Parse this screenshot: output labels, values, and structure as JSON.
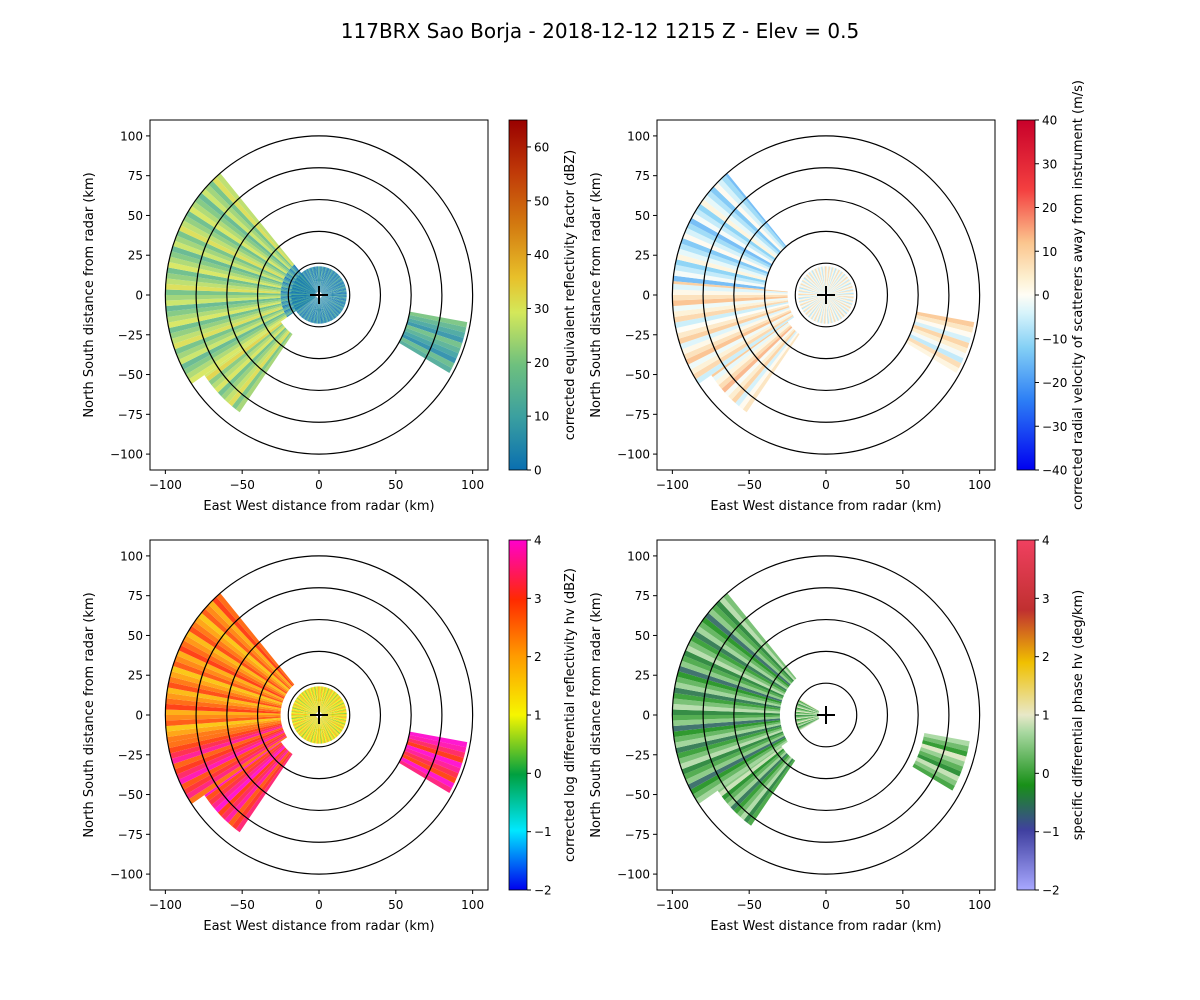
{
  "figure": {
    "title": "117BRX Sao Borja - 2018-12-12 1215 Z -  Elev = 0.5"
  },
  "chart_data": [
    {
      "type": "heatmap",
      "subtype": "radar-ppi",
      "field": "corrected_reflectivity",
      "xlabel": "East West distance from radar (km)",
      "ylabel": "North South distance from radar (km)",
      "xlim": [
        -110,
        110
      ],
      "ylim": [
        -110,
        110
      ],
      "xticks": [
        -100,
        -50,
        0,
        50,
        100
      ],
      "yticks": [
        -100,
        -75,
        -50,
        -25,
        0,
        25,
        50,
        75,
        100
      ],
      "range_rings_km": [
        20,
        40,
        60,
        80,
        100
      ],
      "colorbar": {
        "label": "corrected equivalent reflectivity factor (dBZ)",
        "vmin": 0,
        "vmax": 65,
        "ticks": [
          0,
          10,
          20,
          30,
          40,
          50,
          60
        ],
        "stops": [
          [
            0,
            "#0a6fb0"
          ],
          [
            0.15,
            "#3a9fa0"
          ],
          [
            0.3,
            "#6ec07e"
          ],
          [
            0.45,
            "#d4e85a"
          ],
          [
            0.55,
            "#e8c02a"
          ],
          [
            0.7,
            "#d37a10"
          ],
          [
            0.85,
            "#c03a08"
          ],
          [
            1,
            "#990000"
          ]
        ]
      },
      "echo_sectors": [
        {
          "az_from": 236,
          "az_to": 320,
          "r_from": 25,
          "r_to": 100,
          "value": 24
        },
        {
          "az_from": 215,
          "az_to": 236,
          "r_from": 30,
          "r_to": 90,
          "value": 26
        },
        {
          "az_from": 236,
          "az_to": 320,
          "r_from": 3,
          "r_to": 25,
          "value": 8
        },
        {
          "az_from": 100,
          "az_to": 120,
          "r_from": 60,
          "r_to": 98,
          "value": 13
        },
        {
          "az_from": 0,
          "az_to": 360,
          "r_from": 2,
          "r_to": 18,
          "value": 5
        }
      ]
    },
    {
      "type": "heatmap",
      "subtype": "radar-ppi",
      "field": "corrected_velocity",
      "xlabel": "East West distance from radar (km)",
      "ylabel": "North South distance from radar (km)",
      "xlim": [
        -110,
        110
      ],
      "ylim": [
        -110,
        110
      ],
      "xticks": [
        -100,
        -50,
        0,
        50,
        100
      ],
      "yticks": [
        -100,
        -75,
        -50,
        -25,
        0,
        25,
        50,
        75,
        100
      ],
      "range_rings_km": [
        20,
        40,
        60,
        80,
        100
      ],
      "colorbar": {
        "label": "corrected radial velocity of scatterers away from instrument (m/s)",
        "vmin": -40,
        "vmax": 40,
        "ticks": [
          -40,
          -30,
          -20,
          -10,
          0,
          10,
          20,
          30,
          40
        ],
        "stops": [
          [
            0,
            "#0000f0"
          ],
          [
            0.2,
            "#2d7ff5"
          ],
          [
            0.35,
            "#84d0f5"
          ],
          [
            0.45,
            "#d8f4fb"
          ],
          [
            0.5,
            "#fffdf5"
          ],
          [
            0.55,
            "#fdefcf"
          ],
          [
            0.65,
            "#fbc58e"
          ],
          [
            0.8,
            "#f44040"
          ],
          [
            1,
            "#c8002a"
          ]
        ]
      },
      "echo_sectors": [
        {
          "az_from": 275,
          "az_to": 320,
          "r_from": 40,
          "r_to": 100,
          "value": -6
        },
        {
          "az_from": 236,
          "az_to": 275,
          "r_from": 25,
          "r_to": 100,
          "value": 4
        },
        {
          "az_from": 215,
          "az_to": 236,
          "r_from": 30,
          "r_to": 90,
          "value": 5
        },
        {
          "az_from": 100,
          "az_to": 120,
          "r_from": 60,
          "r_to": 98,
          "value": 3
        },
        {
          "az_from": 0,
          "az_to": 360,
          "r_from": 2,
          "r_to": 18,
          "value": 1
        }
      ]
    },
    {
      "type": "heatmap",
      "subtype": "radar-ppi",
      "field": "corrected_differential_reflectivity",
      "xlabel": "East West distance from radar (km)",
      "ylabel": "North South distance from radar (km)",
      "xlim": [
        -110,
        110
      ],
      "ylim": [
        -110,
        110
      ],
      "xticks": [
        -100,
        -50,
        0,
        50,
        100
      ],
      "yticks": [
        -100,
        -75,
        -50,
        -25,
        0,
        25,
        50,
        75,
        100
      ],
      "range_rings_km": [
        20,
        40,
        60,
        80,
        100
      ],
      "colorbar": {
        "label": "corrected log differential reflectivity hv (dBZ)",
        "vmin": -2,
        "vmax": 4,
        "ticks": [
          -2,
          -1,
          0,
          1,
          2,
          3,
          4
        ],
        "stops": [
          [
            0,
            "#0000ee"
          ],
          [
            0.17,
            "#00e8ff"
          ],
          [
            0.33,
            "#00a040"
          ],
          [
            0.5,
            "#f6f600"
          ],
          [
            0.67,
            "#ff9a00"
          ],
          [
            0.83,
            "#ff2a00"
          ],
          [
            1,
            "#ff00cc"
          ]
        ]
      },
      "echo_sectors": [
        {
          "az_from": 260,
          "az_to": 320,
          "r_from": 25,
          "r_to": 100,
          "value": 2.3
        },
        {
          "az_from": 236,
          "az_to": 260,
          "r_from": 25,
          "r_to": 100,
          "value": 3.2
        },
        {
          "az_from": 215,
          "az_to": 236,
          "r_from": 30,
          "r_to": 90,
          "value": 3.4
        },
        {
          "az_from": 100,
          "az_to": 120,
          "r_from": 60,
          "r_to": 98,
          "value": 3.6
        },
        {
          "az_from": 0,
          "az_to": 360,
          "r_from": 2,
          "r_to": 18,
          "value": 1.2
        }
      ]
    },
    {
      "type": "heatmap",
      "subtype": "radar-ppi",
      "field": "specific_differential_phase",
      "xlabel": "East West distance from radar (km)",
      "ylabel": "North South distance from radar (km)",
      "xlim": [
        -110,
        110
      ],
      "ylim": [
        -110,
        110
      ],
      "xticks": [
        -100,
        -50,
        0,
        50,
        100
      ],
      "yticks": [
        -100,
        -75,
        -50,
        -25,
        0,
        25,
        50,
        75,
        100
      ],
      "range_rings_km": [
        20,
        40,
        60,
        80,
        100
      ],
      "colorbar": {
        "label": "specific differential phase hv (deg/km)",
        "vmin": -2,
        "vmax": 4,
        "ticks": [
          -2,
          -1,
          0,
          1,
          2,
          3,
          4
        ],
        "stops": [
          [
            0,
            "#a8a8ff"
          ],
          [
            0.17,
            "#4040a0"
          ],
          [
            0.3,
            "#189018"
          ],
          [
            0.45,
            "#a8d8a0"
          ],
          [
            0.5,
            "#e8e8c8"
          ],
          [
            0.65,
            "#f0c000"
          ],
          [
            0.8,
            "#c03030"
          ],
          [
            1,
            "#f04060"
          ]
        ]
      },
      "echo_sectors": [
        {
          "az_from": 236,
          "az_to": 320,
          "r_from": 30,
          "r_to": 100,
          "value": 0.1
        },
        {
          "az_from": 215,
          "az_to": 236,
          "r_from": 35,
          "r_to": 85,
          "value": 0.2
        },
        {
          "az_from": 100,
          "az_to": 120,
          "r_from": 65,
          "r_to": 95,
          "value": 0.3
        },
        {
          "az_from": 240,
          "az_to": 300,
          "r_from": 5,
          "r_to": 20,
          "value": 0.4
        }
      ]
    }
  ]
}
